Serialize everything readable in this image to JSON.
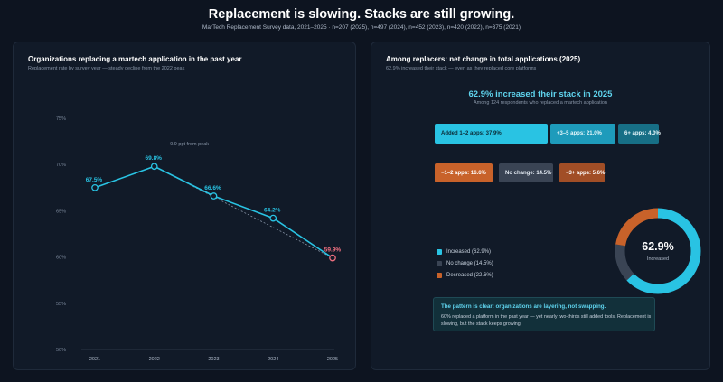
{
  "header": {
    "title": "Replacement is slowing. Stacks are still growing.",
    "subtitle": "MarTech Replacement Survey data, 2021–2025 · n=207 (2025), n=497 (2024), n=452 (2023), n=420 (2022), n=375 (2021)"
  },
  "left_panel": {
    "title": "Organizations replacing a martech application in the past year",
    "subtitle": "Replacement rate by survey year — steady decline from the 2022 peak",
    "annotation": "−9.9 ppt from peak"
  },
  "right_panel": {
    "title": "Among replacers: net change in total applications (2025)",
    "subtitle": "62.9% increased their stack — even as they replaced core platforms",
    "headline": "62.9% increased their stack in 2025",
    "headline_sub": "Among 124 respondents who replaced a martech application",
    "tiles": {
      "add_1_2": "Added 1–2 apps: 37.9%",
      "add_3_5": "+3–5 apps: 21.0%",
      "add_6": "6+ apps: 4.0%",
      "rem_1_2": "−1–2 apps: 16.6%",
      "no_change": "No change: 14.5%",
      "rem_3": "−3+ apps: 5.6%"
    },
    "legend": {
      "increased": "Increased (62.9%)",
      "no_change": "No change (14.5%)",
      "decreased": "Decreased (22.6%)"
    },
    "donut_center": {
      "value": "62.9%",
      "label": "Increased"
    },
    "callout": {
      "title": "The pattern is clear: organizations are layering, not swapping.",
      "body": "60% replaced a platform in the past year — yet nearly two-thirds still added tools. Replacement is slowing, but the stack keeps growing."
    },
    "colors": {
      "increased": "#29c3e3",
      "no_change": "#3a4454",
      "decreased": "#c8622a"
    }
  },
  "chart_data": [
    {
      "type": "line",
      "title": "Organizations replacing a martech application in the past year",
      "x": [
        "2021",
        "2022",
        "2023",
        "2024",
        "2025"
      ],
      "series": [
        {
          "values": [
            67.5,
            69.8,
            66.6,
            64.2,
            59.9
          ],
          "labels": [
            "67.5%",
            "69.8%",
            "66.6%",
            "64.2%",
            "59.9%"
          ]
        }
      ],
      "ylim": [
        50,
        75
      ],
      "yticks": [
        50,
        55,
        60,
        65,
        70,
        75
      ],
      "ytick_labels": [
        "50%",
        "55%",
        "60%",
        "65%",
        "70%",
        "75%"
      ],
      "trend_line": "dashed from 2022 to 2025",
      "grid": false,
      "colors": {
        "line": "#29c3e3",
        "last_point": "#f07080"
      }
    },
    {
      "type": "pie",
      "categories": [
        "Increased",
        "No change",
        "Decreased"
      ],
      "values": [
        62.9,
        14.5,
        22.6
      ],
      "colors": [
        "#29c3e3",
        "#3a4454",
        "#c8622a"
      ]
    }
  ]
}
